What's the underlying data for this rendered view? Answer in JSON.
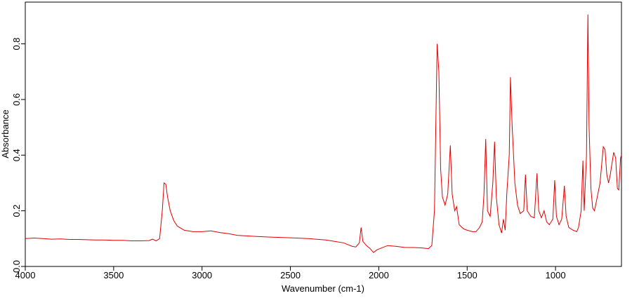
{
  "chart_data": {
    "type": "line",
    "x_label": "Wavenumber (cm-1)",
    "y_label": "Absorbance",
    "xlim": [
      4000,
      627
    ],
    "ylim": [
      0,
      0.95
    ],
    "xticks": [
      4000,
      3500,
      3000,
      2500,
      2000,
      1500,
      1000
    ],
    "yticks": [
      {
        "value": 0,
        "label": "0.0"
      },
      0.2,
      0.4,
      0.6,
      0.8
    ],
    "series": [
      {
        "name": "Absorbance",
        "color": "#e00000",
        "x": [
          4000,
          3950,
          3900,
          3850,
          3800,
          3750,
          3700,
          3650,
          3600,
          3550,
          3500,
          3450,
          3400,
          3350,
          3300,
          3280,
          3260,
          3240,
          3225,
          3215,
          3205,
          3195,
          3180,
          3160,
          3140,
          3100,
          3050,
          3000,
          2950,
          2900,
          2850,
          2800,
          2700,
          2600,
          2500,
          2400,
          2300,
          2250,
          2200,
          2150,
          2130,
          2110,
          2100,
          2090,
          2070,
          2050,
          2030,
          2010,
          1990,
          1950,
          1900,
          1850,
          1800,
          1750,
          1720,
          1700,
          1685,
          1670,
          1660,
          1650,
          1640,
          1625,
          1610,
          1595,
          1585,
          1570,
          1560,
          1545,
          1520,
          1500,
          1470,
          1450,
          1430,
          1415,
          1405,
          1395,
          1385,
          1370,
          1355,
          1345,
          1335,
          1320,
          1305,
          1295,
          1285,
          1275,
          1262,
          1255,
          1245,
          1230,
          1215,
          1200,
          1180,
          1170,
          1160,
          1140,
          1120,
          1105,
          1095,
          1080,
          1065,
          1050,
          1035,
          1015,
          1005,
          995,
          980,
          965,
          950,
          940,
          925,
          900,
          880,
          870,
          855,
          845,
          838,
          825,
          817,
          810,
          800,
          790,
          780,
          770,
          748,
          730,
          720,
          710,
          700,
          690,
          671,
          660,
          650,
          642,
          632,
          627
        ],
        "values": [
          0.1,
          0.102,
          0.1,
          0.098,
          0.099,
          0.097,
          0.097,
          0.096,
          0.095,
          0.095,
          0.094,
          0.094,
          0.092,
          0.092,
          0.093,
          0.098,
          0.092,
          0.1,
          0.2,
          0.3,
          0.295,
          0.25,
          0.2,
          0.165,
          0.145,
          0.13,
          0.125,
          0.125,
          0.128,
          0.122,
          0.118,
          0.112,
          0.108,
          0.105,
          0.103,
          0.1,
          0.095,
          0.09,
          0.085,
          0.072,
          0.07,
          0.085,
          0.14,
          0.09,
          0.075,
          0.065,
          0.05,
          0.06,
          0.065,
          0.075,
          0.072,
          0.068,
          0.068,
          0.066,
          0.064,
          0.075,
          0.2,
          0.8,
          0.7,
          0.35,
          0.25,
          0.22,
          0.26,
          0.435,
          0.26,
          0.2,
          0.215,
          0.15,
          0.135,
          0.13,
          0.125,
          0.125,
          0.14,
          0.16,
          0.26,
          0.458,
          0.2,
          0.18,
          0.3,
          0.448,
          0.25,
          0.15,
          0.12,
          0.17,
          0.13,
          0.27,
          0.4,
          0.68,
          0.5,
          0.3,
          0.22,
          0.19,
          0.2,
          0.33,
          0.2,
          0.18,
          0.175,
          0.335,
          0.2,
          0.175,
          0.2,
          0.16,
          0.15,
          0.17,
          0.31,
          0.18,
          0.15,
          0.17,
          0.29,
          0.18,
          0.14,
          0.13,
          0.125,
          0.14,
          0.2,
          0.38,
          0.2,
          0.4,
          0.906,
          0.5,
          0.28,
          0.21,
          0.2,
          0.23,
          0.3,
          0.43,
          0.42,
          0.33,
          0.3,
          0.33,
          0.41,
          0.39,
          0.28,
          0.275,
          0.39,
          0.4
        ]
      }
    ]
  }
}
